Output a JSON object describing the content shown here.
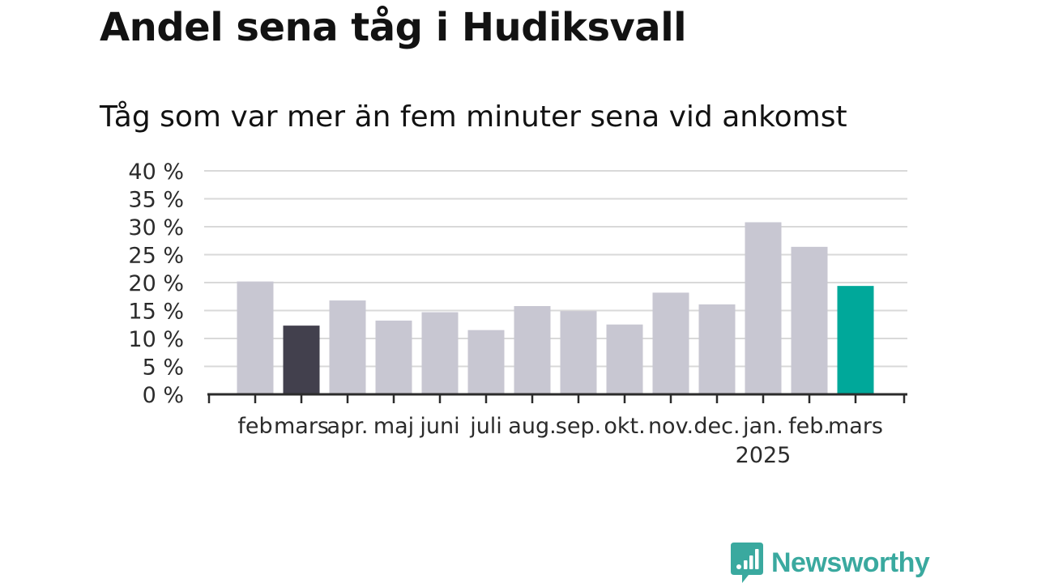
{
  "title": "Andel sena tåg i Hudiksvall",
  "subtitle": "Tåg som var mer än fem minuter sena vid ankomst",
  "brand": {
    "name": "Newsworthy",
    "color": "#3aa99f"
  },
  "colors": {
    "default_bar": "#c8c7d2",
    "highlight_previous": "#42404d",
    "highlight_current": "#00a89a",
    "grid": "#d9d9d9",
    "axis": "#2b2b2b"
  },
  "chart_data": {
    "type": "bar",
    "categories": [
      "feb",
      "mars",
      "apr.",
      "maj",
      "juni",
      "juli",
      "aug.",
      "sep.",
      "okt.",
      "nov.",
      "dec.",
      "jan.",
      "feb.",
      "mars"
    ],
    "year_labels": [
      {
        "index": 11,
        "label": "2025"
      }
    ],
    "values": [
      20.2,
      12.3,
      16.8,
      13.2,
      14.7,
      11.5,
      15.8,
      14.9,
      12.5,
      18.2,
      16.1,
      30.8,
      26.4,
      19.4
    ],
    "highlights": [
      {
        "index": 1,
        "role": "previous"
      },
      {
        "index": 13,
        "role": "current"
      }
    ],
    "y_ticks": [
      "0 %",
      "5 %",
      "10 %",
      "15 %",
      "20 %",
      "25 %",
      "30 %",
      "35 %",
      "40 %"
    ],
    "ylim": [
      0,
      40
    ],
    "grid": true,
    "xlabel": "",
    "ylabel": ""
  }
}
